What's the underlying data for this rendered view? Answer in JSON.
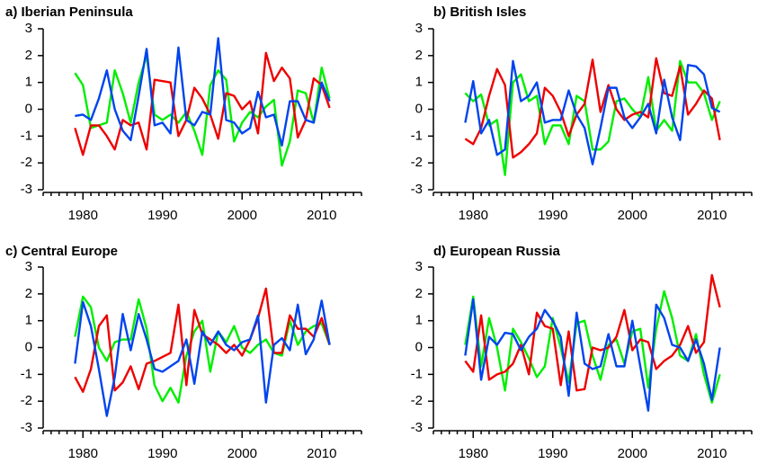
{
  "chart_data": [
    {
      "type": "line",
      "title": "a) Iberian Peninsula",
      "x": [
        1979,
        1980,
        1981,
        1982,
        1983,
        1984,
        1985,
        1986,
        1987,
        1988,
        1989,
        1990,
        1991,
        1992,
        1993,
        1994,
        1995,
        1996,
        1997,
        1998,
        1999,
        2000,
        2001,
        2002,
        2003,
        2004,
        2005,
        2006,
        2007,
        2008,
        2009,
        2010,
        2011
      ],
      "series": [
        {
          "color": "#00ee00",
          "values": [
            1.35,
            0.9,
            -0.7,
            -0.6,
            -0.5,
            1.45,
            0.6,
            -0.5,
            1.0,
            2.0,
            -0.2,
            -0.4,
            -0.2,
            -0.5,
            -0.1,
            -0.8,
            -1.7,
            0.9,
            1.45,
            1.1,
            -1.2,
            -0.5,
            -0.1,
            -0.3,
            0.1,
            0.35,
            -2.1,
            -1.2,
            0.7,
            0.6,
            -0.5,
            1.55,
            0.4
          ]
        },
        {
          "color": "#ee0000",
          "values": [
            -0.7,
            -1.7,
            -0.6,
            -0.6,
            -1.0,
            -1.5,
            -0.4,
            -0.6,
            -0.5,
            -1.5,
            1.1,
            1.05,
            1.0,
            -1.0,
            -0.4,
            0.8,
            0.4,
            -0.2,
            -1.1,
            0.6,
            0.5,
            0.0,
            0.3,
            -0.9,
            2.1,
            1.05,
            1.55,
            1.15,
            -1.05,
            -0.4,
            1.15,
            0.9,
            0.05
          ]
        },
        {
          "color": "#0044ee",
          "values": [
            -0.25,
            -0.2,
            -0.4,
            0.4,
            1.45,
            0.0,
            -0.8,
            -1.15,
            0.5,
            2.25,
            -0.6,
            -0.5,
            -0.9,
            2.3,
            -0.4,
            -0.6,
            -0.1,
            -0.2,
            2.65,
            -0.4,
            -0.5,
            -0.9,
            -0.7,
            0.65,
            -0.3,
            -0.2,
            -1.35,
            0.3,
            0.3,
            -0.4,
            -0.5,
            1.0,
            0.3
          ]
        }
      ],
      "xlim": [
        1975,
        2015
      ],
      "xticks": [
        1980,
        1990,
        2000,
        2010
      ],
      "ylim": [
        -3,
        3
      ],
      "yticks": [
        -3,
        -2,
        -1,
        0,
        1,
        2,
        3
      ]
    },
    {
      "type": "line",
      "title": "b) British Isles",
      "x": [
        1979,
        1980,
        1981,
        1982,
        1983,
        1984,
        1985,
        1986,
        1987,
        1988,
        1989,
        1990,
        1991,
        1992,
        1993,
        1994,
        1995,
        1996,
        1997,
        1998,
        1999,
        2000,
        2001,
        2002,
        2003,
        2004,
        2005,
        2006,
        2007,
        2008,
        2009,
        2010,
        2011
      ],
      "series": [
        {
          "color": "#00ee00",
          "values": [
            0.6,
            0.3,
            0.55,
            -0.6,
            -0.4,
            -2.45,
            1.0,
            1.3,
            0.3,
            0.5,
            -1.3,
            -0.6,
            -0.6,
            -1.3,
            0.5,
            0.3,
            -1.5,
            -1.5,
            -1.2,
            0.3,
            0.4,
            0.0,
            -0.3,
            1.2,
            -0.8,
            -0.4,
            -0.8,
            1.8,
            1.0,
            1.0,
            0.6,
            -0.4,
            0.3
          ]
        },
        {
          "color": "#ee0000",
          "values": [
            -1.1,
            -1.3,
            -0.7,
            0.5,
            1.5,
            0.9,
            -1.8,
            -1.6,
            -1.3,
            -0.9,
            0.8,
            0.5,
            -0.1,
            -1.0,
            -0.2,
            0.2,
            1.85,
            -0.1,
            0.9,
            0.0,
            -0.4,
            -0.2,
            -0.1,
            -0.3,
            1.9,
            0.6,
            0.5,
            1.6,
            -0.2,
            0.2,
            0.7,
            0.4,
            -1.15
          ]
        },
        {
          "color": "#0044ee",
          "values": [
            -0.5,
            1.05,
            -0.9,
            -0.4,
            -1.7,
            -1.5,
            1.8,
            0.3,
            0.5,
            1.0,
            -0.5,
            -0.4,
            -0.4,
            0.7,
            -0.2,
            -0.7,
            -2.05,
            -0.7,
            0.8,
            0.8,
            -0.3,
            -0.7,
            -0.3,
            0.2,
            -0.9,
            1.1,
            -0.3,
            -1.15,
            1.65,
            1.6,
            1.3,
            0.05,
            -0.1
          ]
        }
      ],
      "xlim": [
        1975,
        2015
      ],
      "xticks": [
        1980,
        1990,
        2000,
        2010
      ],
      "ylim": [
        -3,
        3
      ],
      "yticks": [
        -3,
        -2,
        -1,
        0,
        1,
        2,
        3
      ]
    },
    {
      "type": "line",
      "title": "c) Central Europe",
      "x": [
        1979,
        1980,
        1981,
        1982,
        1983,
        1984,
        1985,
        1986,
        1987,
        1988,
        1989,
        1990,
        1991,
        1992,
        1993,
        1994,
        1995,
        1996,
        1997,
        1998,
        1999,
        2000,
        2001,
        2002,
        2003,
        2004,
        2005,
        2006,
        2007,
        2008,
        2009,
        2010,
        2011
      ],
      "series": [
        {
          "color": "#00ee00",
          "values": [
            0.4,
            1.9,
            1.5,
            0.0,
            -0.5,
            0.2,
            0.3,
            0.3,
            1.8,
            0.7,
            -1.4,
            -2.0,
            -1.5,
            -2.05,
            -0.3,
            0.6,
            1.0,
            -0.9,
            0.6,
            0.2,
            0.8,
            0.0,
            -0.2,
            0.1,
            0.3,
            -0.2,
            -0.3,
            1.0,
            0.1,
            0.6,
            0.8,
            0.9,
            0.1
          ]
        },
        {
          "color": "#ee0000",
          "values": [
            -1.1,
            -1.65,
            -0.8,
            0.8,
            1.2,
            -1.6,
            -1.3,
            -0.7,
            -1.55,
            -0.6,
            -0.5,
            -0.35,
            -0.2,
            1.6,
            -1.4,
            1.4,
            0.5,
            0.3,
            0.1,
            -0.2,
            0.1,
            -0.3,
            0.3,
            1.1,
            2.2,
            -0.2,
            -0.2,
            1.2,
            0.7,
            0.7,
            0.4,
            1.1,
            0.1
          ]
        },
        {
          "color": "#0044ee",
          "values": [
            -0.6,
            1.7,
            0.8,
            -0.8,
            -2.55,
            -1.1,
            1.25,
            -0.1,
            1.25,
            0.3,
            -0.8,
            -0.9,
            -0.7,
            -0.5,
            0.3,
            -1.35,
            0.6,
            0.1,
            0.6,
            0.1,
            -0.1,
            0.2,
            0.3,
            1.2,
            -2.05,
            0.1,
            0.35,
            -0.1,
            1.6,
            -0.25,
            0.3,
            1.75,
            0.1
          ]
        }
      ],
      "xlim": [
        1975,
        2015
      ],
      "xticks": [
        1980,
        1990,
        2000,
        2010
      ],
      "ylim": [
        -3,
        3
      ],
      "yticks": [
        -3,
        -2,
        -1,
        0,
        1,
        2,
        3
      ]
    },
    {
      "type": "line",
      "title": "d) European Russia",
      "x": [
        1979,
        1980,
        1981,
        1982,
        1983,
        1984,
        1985,
        1986,
        1987,
        1988,
        1989,
        1990,
        1991,
        1992,
        1993,
        1994,
        1995,
        1996,
        1997,
        1998,
        1999,
        2000,
        2001,
        2002,
        2003,
        2004,
        2005,
        2006,
        2007,
        2008,
        2009,
        2010,
        2011
      ],
      "series": [
        {
          "color": "#00ee00",
          "values": [
            0.1,
            1.9,
            -0.7,
            1.1,
            0.0,
            -1.6,
            0.7,
            0.2,
            -0.4,
            -1.1,
            -0.7,
            1.1,
            0.0,
            -1.3,
            0.9,
            1.0,
            -0.3,
            -1.2,
            0.1,
            0.3,
            -0.6,
            0.6,
            0.7,
            -1.5,
            0.7,
            2.1,
            1.1,
            -0.3,
            -0.5,
            0.5,
            -1.0,
            -2.05,
            -1.0
          ]
        },
        {
          "color": "#ee0000",
          "values": [
            -0.5,
            -0.9,
            1.2,
            -1.2,
            -1.0,
            -0.9,
            -0.6,
            0.1,
            -1.0,
            1.3,
            0.8,
            0.7,
            -1.4,
            0.6,
            -1.6,
            -1.55,
            0.0,
            -0.1,
            0.0,
            0.4,
            1.4,
            -0.1,
            0.3,
            0.2,
            -0.8,
            -0.5,
            -0.3,
            0.1,
            0.8,
            -0.2,
            0.2,
            2.7,
            1.5
          ]
        },
        {
          "color": "#0044ee",
          "values": [
            -0.3,
            1.8,
            -1.2,
            0.4,
            0.1,
            0.55,
            0.5,
            -0.1,
            0.4,
            0.7,
            1.4,
            1.0,
            0.4,
            -1.8,
            1.3,
            -0.6,
            -0.8,
            -0.7,
            0.5,
            -0.7,
            -0.7,
            1.0,
            -0.7,
            -2.35,
            1.6,
            1.1,
            0.1,
            0.0,
            -0.5,
            0.3,
            -0.6,
            -1.95,
            0.0
          ]
        }
      ],
      "xlim": [
        1975,
        2015
      ],
      "xticks": [
        1980,
        1990,
        2000,
        2010
      ],
      "ylim": [
        -3,
        3
      ],
      "yticks": [
        -3,
        -2,
        -1,
        0,
        1,
        2,
        3
      ]
    }
  ]
}
